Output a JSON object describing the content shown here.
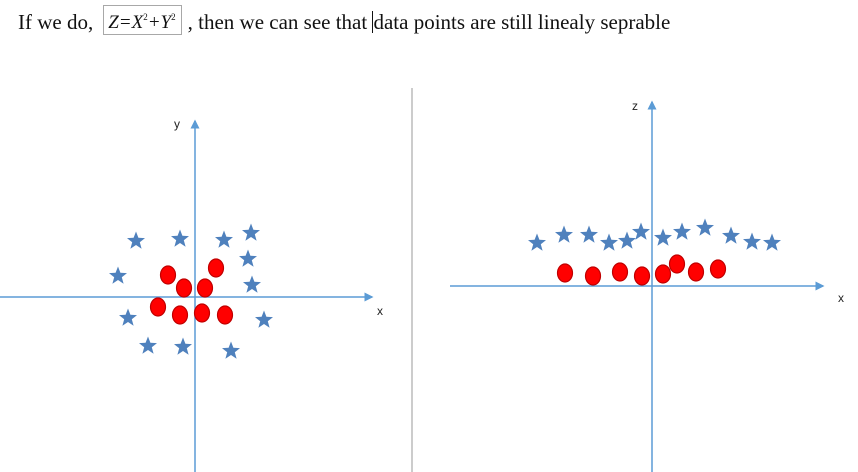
{
  "sentence": {
    "before": "If we do,",
    "formula": {
      "lhs": "Z=X",
      "exp1": "2",
      "mid": "+Y",
      "exp2": "2"
    },
    "after_part1": ", then we can see that ",
    "after_part2": "data points are still linealy seprable"
  },
  "left_plot": {
    "x_axis_label": "x",
    "y_axis_label": "y"
  },
  "right_plot": {
    "x_axis_label": "x",
    "z_axis_label": "z"
  },
  "colors": {
    "axis": "#5b9bd5",
    "star": "#4f81bd",
    "circle_fill": "#ff0000",
    "circle_stroke": "#c00000",
    "divider": "#999999"
  }
}
